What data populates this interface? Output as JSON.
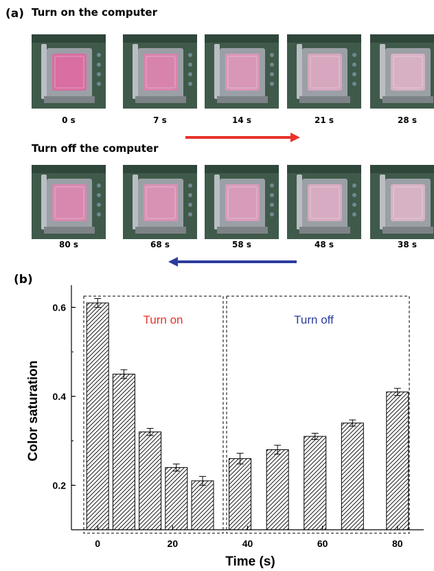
{
  "panel_a": {
    "label": "(a)",
    "row_on": {
      "title": "Turn on the computer",
      "times": [
        "0 s",
        "7 s",
        "14 s",
        "21 s",
        "28 s"
      ],
      "pinkness": [
        0.95,
        0.75,
        0.55,
        0.4,
        0.3
      ],
      "arrow_color": "#e8322b"
    },
    "row_off": {
      "title": "Turn off the computer",
      "times": [
        "80 s",
        "68 s",
        "58 s",
        "48 s",
        "38 s"
      ],
      "pinkness": [
        0.7,
        0.6,
        0.5,
        0.35,
        0.28
      ],
      "arrow_color": "#2b3c9e"
    },
    "photo_colors": {
      "board": "#3f5a4a",
      "socket": "#9aa0a6",
      "chip": "#d7cfd4",
      "pink": "#d8699f"
    }
  },
  "panel_b": {
    "label": "(b)"
  },
  "chart_data": {
    "type": "bar",
    "x": [
      0,
      7,
      14,
      21,
      28,
      38,
      48,
      58,
      68,
      80
    ],
    "values": [
      0.61,
      0.45,
      0.32,
      0.24,
      0.21,
      0.26,
      0.28,
      0.31,
      0.34,
      0.41
    ],
    "errors": [
      0.01,
      0.01,
      0.008,
      0.008,
      0.01,
      0.012,
      0.01,
      0.007,
      0.007,
      0.008
    ],
    "xlabel": "Time (s)",
    "ylabel": "Color saturation",
    "xlim": [
      -7,
      87
    ],
    "ylim": [
      0.1,
      0.65
    ],
    "xticks": [
      0,
      20,
      40,
      60,
      80
    ],
    "xtick_labels": [
      "0",
      "20",
      "40",
      "60",
      "80"
    ],
    "yticks": [
      0.2,
      0.4,
      0.6
    ],
    "ytick_labels": [
      "0.2",
      "0.4",
      "0.6"
    ],
    "fill": "diagonal hatch",
    "annotations": [
      {
        "text": "Turn on",
        "color": "#e8322b",
        "group_start": 0,
        "group_end": 4
      },
      {
        "text": "Turn off",
        "color": "#2b3c9e",
        "group_start": 5,
        "group_end": 9
      }
    ]
  }
}
